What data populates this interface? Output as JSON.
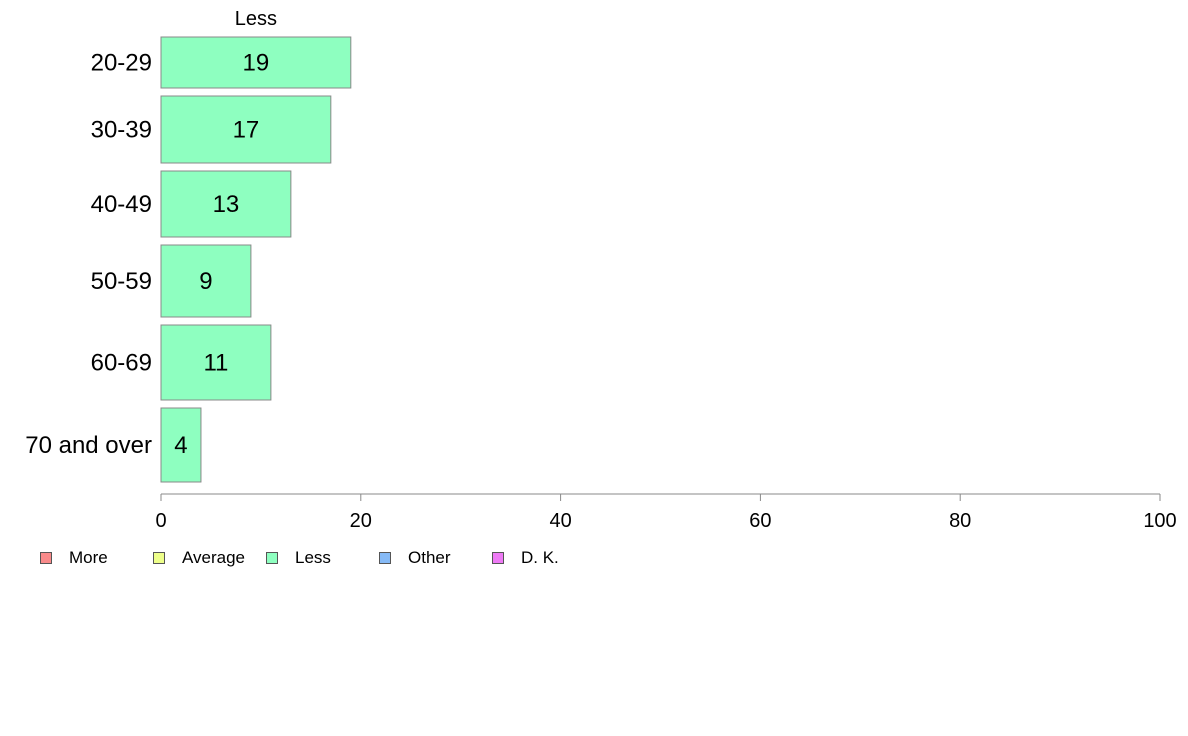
{
  "chart_data": {
    "type": "bar",
    "orientation": "horizontal",
    "series_header": "Less",
    "categories": [
      "20-29",
      "30-39",
      "40-49",
      "50-59",
      "60-69",
      "70 and over"
    ],
    "series": [
      {
        "name": "Less",
        "values": [
          19,
          17,
          13,
          9,
          11,
          4
        ],
        "color": "#8effc0"
      }
    ],
    "xlim": [
      0,
      100
    ],
    "xticks": [
      0,
      20,
      40,
      60,
      80,
      100
    ],
    "xlabel": "",
    "ylabel": "",
    "grid": false,
    "legend_position": "bottom-left",
    "legend": [
      {
        "label": "More",
        "color": "#f88a8a"
      },
      {
        "label": "Average",
        "color": "#eeff8a"
      },
      {
        "label": "Less",
        "color": "#8effc0"
      },
      {
        "label": "Other",
        "color": "#86baf6"
      },
      {
        "label": "D. K.",
        "color": "#ee7af5"
      }
    ]
  }
}
